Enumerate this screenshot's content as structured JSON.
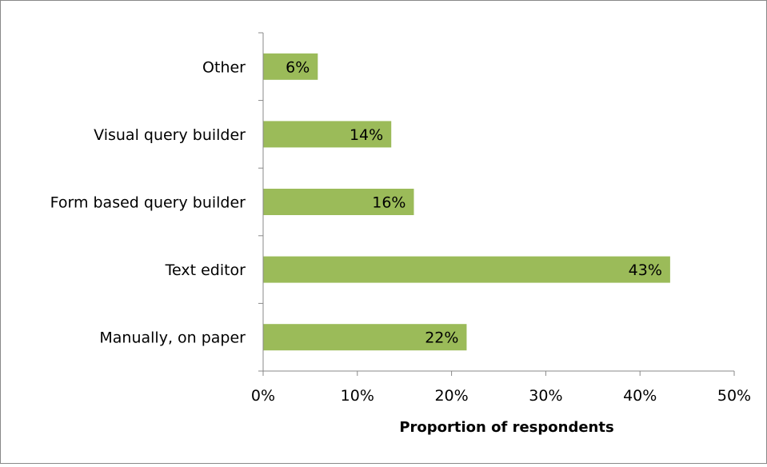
{
  "chart_data": {
    "type": "bar",
    "orientation": "horizontal",
    "categories": [
      "Manually, on paper",
      "Text editor",
      "Form based query builder",
      "Visual query builder",
      "Other"
    ],
    "values": [
      21.6,
      43.2,
      16.0,
      13.6,
      5.8
    ],
    "data_labels": [
      "22%",
      "43%",
      "16%",
      "14%",
      "6%"
    ],
    "xlabel": "Proportion of respondents",
    "ylabel": "",
    "xlim": [
      0,
      50
    ],
    "x_ticks": [
      {
        "value": 0,
        "label": "0%"
      },
      {
        "value": 10,
        "label": "10%"
      },
      {
        "value": 20,
        "label": "20%"
      },
      {
        "value": 30,
        "label": "30%"
      },
      {
        "value": 40,
        "label": "40%"
      },
      {
        "value": 50,
        "label": "50%"
      }
    ],
    "grid": false,
    "legend": false,
    "bar_color": "#9bbb59"
  }
}
